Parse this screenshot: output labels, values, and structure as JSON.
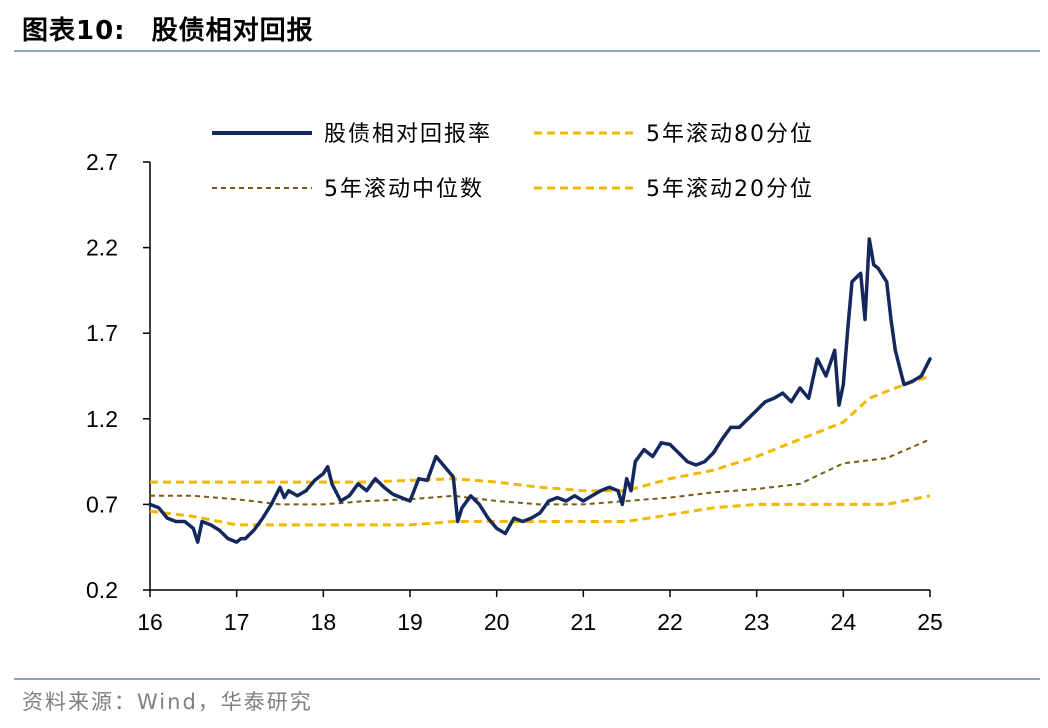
{
  "header": {
    "label": "图表10:",
    "title": "股债相对回报"
  },
  "footer": {
    "source": "资料来源：Wind，华泰研究"
  },
  "chart_data": {
    "type": "line",
    "title": "股债相对回报",
    "xlabel": "",
    "ylabel": "",
    "xlim": [
      16,
      25
    ],
    "ylim": [
      0.2,
      2.7
    ],
    "x_ticks": [
      "16",
      "17",
      "18",
      "19",
      "20",
      "21",
      "22",
      "23",
      "24",
      "25"
    ],
    "y_ticks": [
      "2.7",
      "2.2",
      "1.7",
      "1.2",
      "0.7",
      "0.2"
    ],
    "grid": false,
    "legend_position": "top",
    "colors": {
      "main": "#14285e",
      "p80": "#f2b800",
      "median": "#7a5c10",
      "p20": "#f2b800"
    },
    "series": [
      {
        "name": "股债相对回报率",
        "style": "solid",
        "x": [
          16.0,
          16.1,
          16.2,
          16.3,
          16.4,
          16.5,
          16.55,
          16.6,
          16.7,
          16.8,
          16.9,
          17.0,
          17.05,
          17.1,
          17.2,
          17.3,
          17.4,
          17.5,
          17.55,
          17.6,
          17.7,
          17.8,
          17.9,
          18.0,
          18.05,
          18.1,
          18.2,
          18.3,
          18.4,
          18.5,
          18.6,
          18.7,
          18.8,
          18.9,
          19.0,
          19.1,
          19.2,
          19.3,
          19.4,
          19.5,
          19.55,
          19.6,
          19.7,
          19.8,
          19.9,
          20.0,
          20.1,
          20.2,
          20.3,
          20.4,
          20.5,
          20.6,
          20.7,
          20.8,
          20.9,
          21.0,
          21.1,
          21.2,
          21.3,
          21.4,
          21.45,
          21.5,
          21.55,
          21.6,
          21.7,
          21.8,
          21.9,
          22.0,
          22.1,
          22.2,
          22.3,
          22.4,
          22.5,
          22.6,
          22.7,
          22.8,
          22.9,
          23.0,
          23.1,
          23.2,
          23.3,
          23.4,
          23.5,
          23.6,
          23.7,
          23.8,
          23.9,
          23.95,
          24.0,
          24.05,
          24.1,
          24.2,
          24.25,
          24.3,
          24.35,
          24.4,
          24.5,
          24.55,
          24.6,
          24.7,
          24.8,
          24.9,
          25.0
        ],
        "values": [
          0.7,
          0.68,
          0.62,
          0.6,
          0.6,
          0.56,
          0.48,
          0.6,
          0.58,
          0.55,
          0.5,
          0.48,
          0.5,
          0.5,
          0.55,
          0.62,
          0.7,
          0.8,
          0.74,
          0.78,
          0.75,
          0.78,
          0.84,
          0.88,
          0.92,
          0.82,
          0.72,
          0.75,
          0.82,
          0.78,
          0.85,
          0.8,
          0.76,
          0.74,
          0.72,
          0.85,
          0.84,
          0.98,
          0.92,
          0.86,
          0.6,
          0.68,
          0.75,
          0.7,
          0.62,
          0.56,
          0.53,
          0.62,
          0.6,
          0.62,
          0.65,
          0.72,
          0.74,
          0.72,
          0.75,
          0.72,
          0.75,
          0.78,
          0.8,
          0.78,
          0.7,
          0.85,
          0.78,
          0.95,
          1.02,
          0.98,
          1.06,
          1.05,
          1.0,
          0.95,
          0.93,
          0.95,
          1.0,
          1.08,
          1.15,
          1.15,
          1.2,
          1.25,
          1.3,
          1.32,
          1.35,
          1.3,
          1.38,
          1.32,
          1.55,
          1.45,
          1.6,
          1.28,
          1.4,
          1.72,
          2.0,
          2.05,
          1.78,
          2.25,
          2.1,
          2.08,
          2.0,
          1.78,
          1.6,
          1.4,
          1.42,
          1.45,
          1.55
        ]
      },
      {
        "name": "5年滚动80分位",
        "style": "dashed",
        "x": [
          16.0,
          16.5,
          17.0,
          17.5,
          18.0,
          18.5,
          19.0,
          19.5,
          20.0,
          20.5,
          21.0,
          21.5,
          22.0,
          22.5,
          23.0,
          23.5,
          24.0,
          24.3,
          24.6,
          25.0
        ],
        "values": [
          0.83,
          0.83,
          0.83,
          0.83,
          0.83,
          0.83,
          0.84,
          0.85,
          0.83,
          0.8,
          0.78,
          0.78,
          0.85,
          0.9,
          0.98,
          1.08,
          1.18,
          1.32,
          1.38,
          1.45
        ]
      },
      {
        "name": "5年滚动中位数",
        "style": "dashed",
        "x": [
          16.0,
          16.5,
          17.0,
          17.5,
          18.0,
          18.5,
          19.0,
          19.5,
          20.0,
          20.5,
          21.0,
          21.5,
          22.0,
          22.5,
          23.0,
          23.5,
          24.0,
          24.5,
          25.0
        ],
        "values": [
          0.75,
          0.75,
          0.73,
          0.7,
          0.7,
          0.72,
          0.73,
          0.75,
          0.72,
          0.7,
          0.7,
          0.72,
          0.74,
          0.77,
          0.79,
          0.82,
          0.94,
          0.97,
          1.08
        ]
      },
      {
        "name": "5年滚动20分位",
        "style": "dashed",
        "x": [
          16.0,
          16.5,
          17.0,
          17.5,
          18.0,
          18.5,
          19.0,
          19.5,
          20.0,
          20.5,
          21.0,
          21.5,
          22.0,
          22.5,
          23.0,
          23.5,
          24.0,
          24.5,
          25.0
        ],
        "values": [
          0.66,
          0.63,
          0.58,
          0.58,
          0.58,
          0.58,
          0.58,
          0.6,
          0.6,
          0.6,
          0.6,
          0.6,
          0.64,
          0.68,
          0.7,
          0.7,
          0.7,
          0.7,
          0.75
        ]
      }
    ]
  }
}
